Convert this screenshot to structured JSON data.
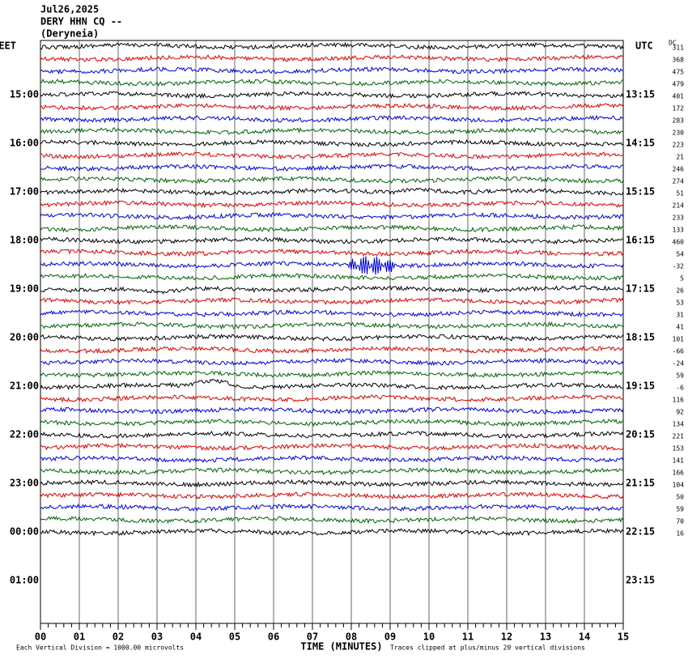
{
  "header": {
    "date": "Jul26,2025",
    "station": "DERY HHN CQ --",
    "location": "(Deryneia)"
  },
  "left_axis": {
    "title": "EET",
    "labels": [
      "15:00",
      "16:00",
      "17:00",
      "18:00",
      "19:00",
      "20:00",
      "21:00",
      "22:00",
      "23:00",
      "00:00",
      "01:00"
    ]
  },
  "right_axis": {
    "title": "UTC",
    "labels": [
      "13:15",
      "14:15",
      "15:15",
      "16:15",
      "17:15",
      "18:15",
      "19:15",
      "20:15",
      "21:15",
      "22:15",
      "23:15"
    ]
  },
  "dc": {
    "title": "DC",
    "values": [
      311,
      368,
      475,
      479,
      401,
      172,
      283,
      230,
      223,
      21,
      246,
      274,
      51,
      214,
      233,
      133,
      460,
      54,
      -32,
      5,
      26,
      53,
      31,
      41,
      101,
      -66,
      -24,
      59,
      -6,
      116,
      92,
      134,
      221,
      153,
      141,
      166,
      104,
      50,
      59,
      70,
      16
    ]
  },
  "trace_colors": [
    "#000000",
    "#e00000",
    "#0000e0",
    "#006400"
  ],
  "x_axis": {
    "title": "TIME (MINUTES)",
    "labels": [
      "00",
      "01",
      "02",
      "03",
      "04",
      "05",
      "06",
      "07",
      "08",
      "09",
      "10",
      "11",
      "12",
      "13",
      "14",
      "15"
    ]
  },
  "footer": {
    "scale": "Each Vertical Division = 1000.00 microvolts",
    "clip": "Traces clipped at plus/minus 20 vertical divisions"
  }
}
